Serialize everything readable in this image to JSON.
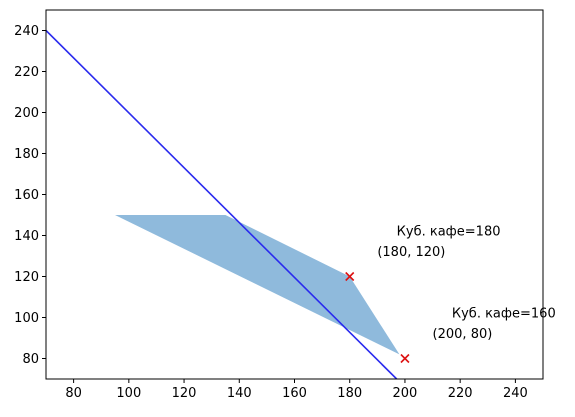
{
  "chart_data": {
    "type": "line",
    "title": "",
    "xlabel": "",
    "ylabel": "",
    "xlim": [
      70,
      250
    ],
    "ylim": [
      70,
      250
    ],
    "xticks": [
      80,
      100,
      120,
      140,
      160,
      180,
      200,
      220,
      240
    ],
    "yticks": [
      80,
      100,
      120,
      140,
      160,
      180,
      200,
      220,
      240
    ],
    "grid": false,
    "region": {
      "color": "#8fbadc",
      "vertices": [
        [
          95,
          150
        ],
        [
          135,
          150
        ],
        [
          180,
          120
        ],
        [
          198,
          82
        ],
        [
          95,
          150
        ]
      ]
    },
    "line": {
      "color": "#2a2aee",
      "points": [
        [
          70,
          240
        ],
        [
          197,
          70
        ]
      ]
    },
    "markers": {
      "color": "#dd1111",
      "symbol": "x",
      "points": [
        [
          180,
          120
        ],
        [
          200,
          80
        ]
      ]
    },
    "annotations": [
      {
        "text": "Куб. кафе=180",
        "x": 197,
        "y": 140
      },
      {
        "text": "(180, 120)",
        "x": 190,
        "y": 130
      },
      {
        "text": "Куб. кафе=160",
        "x": 217,
        "y": 100
      },
      {
        "text": "(200, 80)",
        "x": 210,
        "y": 90
      }
    ]
  }
}
